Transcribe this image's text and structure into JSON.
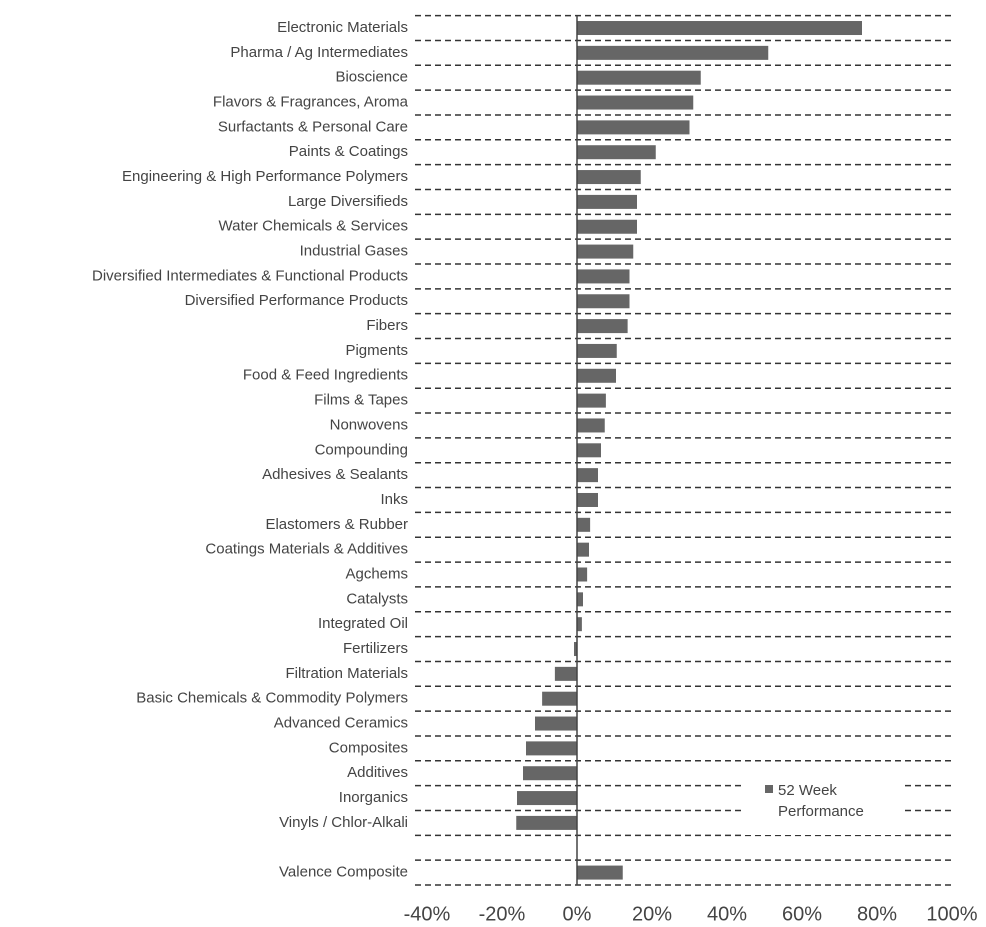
{
  "chart_data": {
    "type": "barh",
    "categories": [
      "Electronic Materials",
      "Pharma / Ag Intermediates",
      "Bioscience",
      "Flavors & Fragrances, Aroma",
      "Surfactants & Personal Care",
      "Paints & Coatings",
      "Engineering & High Performance Polymers",
      "Large Diversifieds",
      "Water Chemicals & Services",
      "Industrial Gases",
      "Diversified Intermediates & Functional Products",
      "Diversified Performance Products",
      "Fibers",
      "Pigments",
      "Food & Feed Ingredients",
      "Films & Tapes",
      "Nonwovens",
      "Compounding",
      "Adhesives & Sealants",
      "Inks",
      "Elastomers & Rubber",
      "Coatings Materials & Additives",
      "Agchems",
      "Catalysts",
      "Integrated Oil",
      "Fertilizers",
      "Filtration Materials",
      "Basic Chemicals & Commodity Polymers",
      "Advanced Ceramics",
      "Composites",
      "Additives",
      "Inorganics",
      "Vinyls / Chlor-Alkali",
      null,
      "Valence Composite"
    ],
    "series": [
      {
        "name": "52 Week Performance",
        "color": "#666666",
        "values": [
          76,
          51,
          33,
          31,
          30,
          21,
          17,
          16,
          16,
          15,
          14,
          14,
          13.5,
          10.6,
          10.4,
          7.7,
          7.4,
          6.4,
          5.6,
          5.6,
          3.5,
          3.2,
          2.7,
          1.6,
          1.3,
          -0.8,
          -5.9,
          -9.3,
          -11.2,
          -13.6,
          -14.4,
          -16,
          -16.2,
          null,
          12.2
        ]
      }
    ],
    "xlim": [
      -40,
      100
    ],
    "xticks": [
      {
        "value": -40,
        "label": "-40%"
      },
      {
        "value": -20,
        "label": "-20%"
      },
      {
        "value": 0,
        "label": "0%"
      },
      {
        "value": 20,
        "label": "20%"
      },
      {
        "value": 40,
        "label": "40%"
      },
      {
        "value": 60,
        "label": "60%"
      },
      {
        "value": 80,
        "label": "80%"
      },
      {
        "value": 100,
        "label": "100%"
      }
    ],
    "legend": "lower right"
  }
}
